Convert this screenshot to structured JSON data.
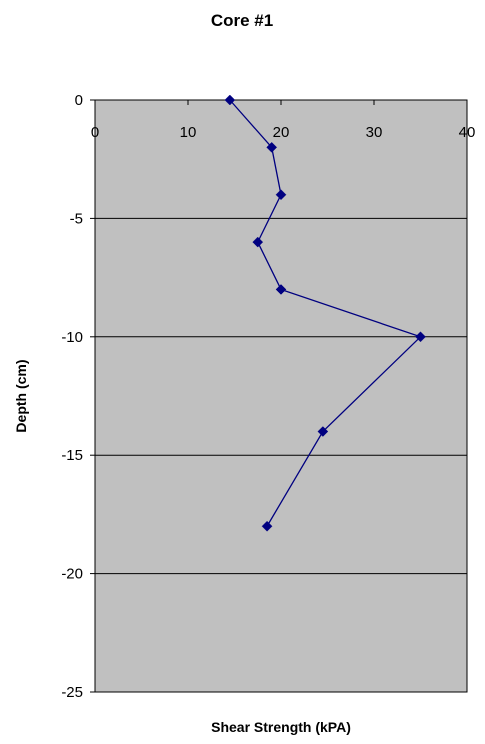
{
  "chart_data": {
    "type": "line",
    "title": "Core #1",
    "xlabel": "Shear Strength (kPA)",
    "ylabel": "Depth (cm)",
    "xlim": [
      0,
      40
    ],
    "ylim": [
      -25,
      0
    ],
    "x_ticks": [
      0,
      10,
      20,
      30,
      40
    ],
    "y_ticks": [
      0,
      -5,
      -10,
      -15,
      -20,
      -25
    ],
    "x_tick_labels": [
      "0",
      "10",
      "20",
      "30",
      "40"
    ],
    "y_tick_labels": [
      "0",
      "-5",
      "-10",
      "-15",
      "-20",
      "-25"
    ],
    "x_axis_position": "top",
    "grid": "horizontal",
    "legend": "none",
    "series": [
      {
        "x": [
          14.5,
          19,
          20,
          17.5,
          20,
          35,
          24.5,
          18.5
        ],
        "y": [
          0,
          -2,
          -4,
          -6,
          -8,
          -10,
          -14,
          -18
        ]
      }
    ],
    "colors": {
      "plot_background": "#c0c0c0",
      "series_line": "#000080",
      "gridline": "#000000"
    }
  }
}
